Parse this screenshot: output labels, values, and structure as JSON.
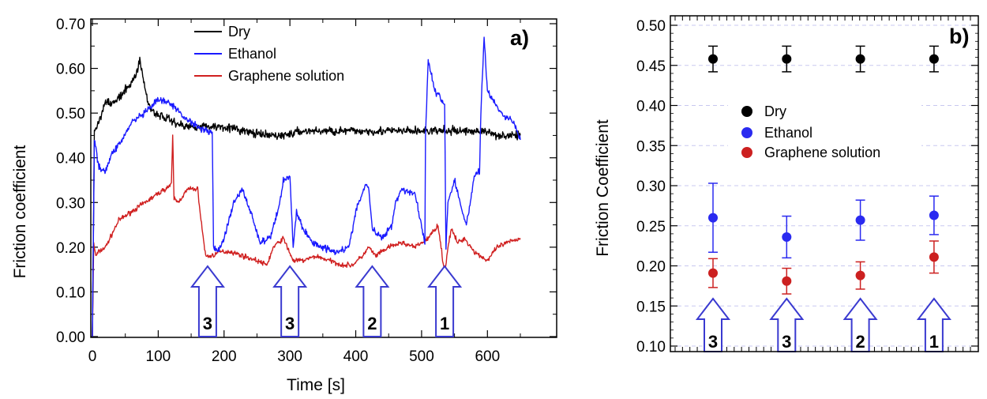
{
  "chart_data": [
    {
      "type": "line",
      "panel_label": "a)",
      "xlabel": "Time [s]",
      "ylabel": "Friction coefficient",
      "xlim": [
        0,
        650
      ],
      "ylim": [
        0,
        0.7
      ],
      "x_ticks": [
        "0",
        "100",
        "200",
        "300",
        "400",
        "500",
        "600"
      ],
      "y_ticks": [
        "0.00",
        "0.10",
        "0.20",
        "0.30",
        "0.40",
        "0.50",
        "0.60",
        "0.70"
      ],
      "legend_position": "top-center",
      "grid": false,
      "series": [
        {
          "name": "Dry",
          "color": "#000000",
          "x": [
            0,
            3,
            10,
            20,
            30,
            45,
            55,
            65,
            72,
            78,
            85,
            95,
            110,
            125,
            140,
            160,
            180,
            200,
            230,
            260,
            290,
            320,
            350,
            380,
            410,
            440,
            470,
            500,
            530,
            560,
            590,
            620,
            650
          ],
          "y": [
            0.0,
            0.46,
            0.48,
            0.53,
            0.52,
            0.54,
            0.56,
            0.58,
            0.62,
            0.57,
            0.52,
            0.5,
            0.49,
            0.48,
            0.47,
            0.47,
            0.47,
            0.47,
            0.46,
            0.45,
            0.45,
            0.46,
            0.46,
            0.46,
            0.46,
            0.46,
            0.46,
            0.46,
            0.46,
            0.46,
            0.46,
            0.45,
            0.45
          ]
        },
        {
          "name": "Ethanol",
          "color": "#1a1aff",
          "x": [
            0,
            3,
            10,
            20,
            30,
            45,
            60,
            80,
            100,
            120,
            140,
            160,
            175,
            182,
            184,
            190,
            200,
            215,
            228,
            240,
            255,
            270,
            285,
            290,
            300,
            305,
            310,
            320,
            335,
            350,
            370,
            390,
            400,
            415,
            420,
            425,
            440,
            455,
            460,
            470,
            490,
            505,
            506,
            510,
            520,
            535,
            537,
            540,
            550,
            560,
            568,
            575,
            580,
            588,
            590,
            595,
            600,
            620,
            640,
            650
          ],
          "y": [
            0.0,
            0.44,
            0.38,
            0.37,
            0.41,
            0.44,
            0.48,
            0.5,
            0.53,
            0.52,
            0.49,
            0.47,
            0.46,
            0.46,
            0.2,
            0.19,
            0.22,
            0.3,
            0.33,
            0.28,
            0.21,
            0.22,
            0.3,
            0.35,
            0.36,
            0.2,
            0.28,
            0.24,
            0.21,
            0.2,
            0.19,
            0.2,
            0.28,
            0.34,
            0.33,
            0.24,
            0.22,
            0.25,
            0.3,
            0.33,
            0.32,
            0.21,
            0.45,
            0.62,
            0.55,
            0.52,
            0.2,
            0.3,
            0.35,
            0.29,
            0.25,
            0.31,
            0.36,
            0.37,
            0.5,
            0.67,
            0.55,
            0.5,
            0.48,
            0.44
          ]
        },
        {
          "name": "Graphene solution",
          "color": "#d02020",
          "x": [
            0,
            2,
            5,
            10,
            20,
            30,
            40,
            50,
            60,
            70,
            80,
            90,
            100,
            110,
            120,
            122,
            124,
            130,
            145,
            160,
            165,
            172,
            180,
            195,
            210,
            230,
            250,
            265,
            275,
            290,
            305,
            320,
            340,
            360,
            380,
            395,
            410,
            420,
            430,
            450,
            470,
            490,
            510,
            525,
            535,
            540,
            545,
            555,
            565,
            580,
            600,
            615,
            630,
            650
          ],
          "y": [
            0.0,
            0.21,
            0.18,
            0.19,
            0.2,
            0.23,
            0.26,
            0.27,
            0.28,
            0.29,
            0.3,
            0.31,
            0.32,
            0.33,
            0.34,
            0.45,
            0.31,
            0.3,
            0.33,
            0.33,
            0.26,
            0.18,
            0.18,
            0.19,
            0.19,
            0.18,
            0.17,
            0.16,
            0.2,
            0.22,
            0.17,
            0.17,
            0.18,
            0.17,
            0.16,
            0.16,
            0.18,
            0.2,
            0.18,
            0.2,
            0.21,
            0.2,
            0.22,
            0.25,
            0.14,
            0.2,
            0.24,
            0.21,
            0.22,
            0.19,
            0.17,
            0.2,
            0.21,
            0.22
          ]
        }
      ],
      "arrows": [
        {
          "x": 175,
          "label": "3"
        },
        {
          "x": 300,
          "label": "3"
        },
        {
          "x": 425,
          "label": "2"
        },
        {
          "x": 535,
          "label": "1"
        }
      ]
    },
    {
      "type": "scatter",
      "panel_label": "b)",
      "ylabel": "Friction Coefficient",
      "xlabel": "",
      "ylim": [
        0.1,
        0.5
      ],
      "y_ticks": [
        "0.10",
        "0.15",
        "0.20",
        "0.25",
        "0.30",
        "0.35",
        "0.40",
        "0.45",
        "0.50"
      ],
      "grid": true,
      "legend_position": "center",
      "categories": [
        "3",
        "3",
        "2",
        "1"
      ],
      "series": [
        {
          "name": "Dry",
          "color": "#000000",
          "values": [
            0.458,
            0.458,
            0.458,
            0.458
          ],
          "errors": [
            0.016,
            0.016,
            0.016,
            0.016
          ]
        },
        {
          "name": "Ethanol",
          "color": "#2a2af0",
          "values": [
            0.26,
            0.236,
            0.257,
            0.263
          ],
          "errors": [
            0.043,
            0.026,
            0.025,
            0.024
          ]
        },
        {
          "name": "Graphene solution",
          "color": "#cc2020",
          "values": [
            0.191,
            0.181,
            0.188,
            0.211
          ],
          "errors": [
            0.018,
            0.016,
            0.017,
            0.02
          ]
        }
      ]
    }
  ]
}
